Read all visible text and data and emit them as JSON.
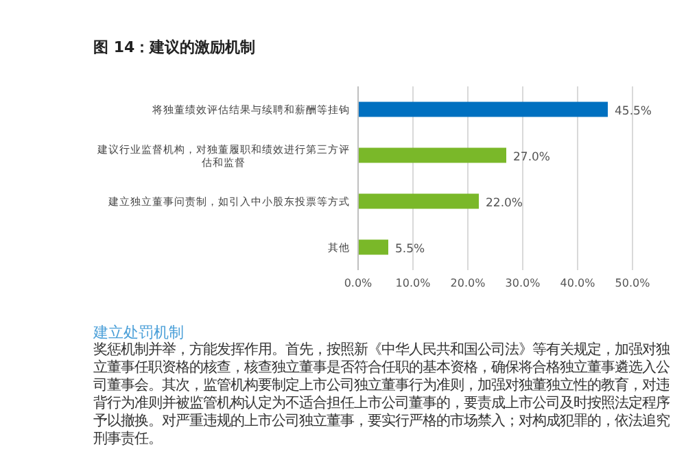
{
  "chart_data": {
    "type": "bar",
    "orientation": "horizontal",
    "title": "图 14：建议的激励机制",
    "categories": [
      "将独董绩效评估结果与续聘和薪酬等挂钩",
      "建议行业监督机构，对独董履职和绩效进行第三方评估和监督",
      "建立独立董事问责制，如引入中小股东投票等方式",
      "其他"
    ],
    "values": [
      45.5,
      27.0,
      22.0,
      5.5
    ],
    "colors": [
      "#0070c0",
      "#7ab829",
      "#7ab829",
      "#7ab829"
    ],
    "value_labels": [
      "45.5%",
      "27.0%",
      "22.0%",
      "5.5%"
    ],
    "xlim": [
      0,
      50
    ],
    "xticks": [
      {
        "value": 0,
        "label": "0.0%"
      },
      {
        "value": 10,
        "label": "10.0%"
      },
      {
        "value": 20,
        "label": "20.0%"
      },
      {
        "value": 30,
        "label": "30.0%"
      },
      {
        "value": 40,
        "label": "40.0%"
      },
      {
        "value": 50,
        "label": "50.0%"
      }
    ],
    "grid": "x",
    "annotations": [
      "建立处罚机制",
      "奖惩机制并举，方能发挥作用。首先，按照新《中华人民共和国公司法》等有关规定，加强对独立董事任职资格的核查，核查独立董事是否符合任职的基本资格，确保将合格独立董事遴选入公司董事会。其次，监管机构要制定上市公司独立董事行为准则，加强对独董独立性的教育，对违背行为准则并被监管机构认定为不适合担任上市公司董事的，要责成上市公司及时按照法定程序予以撤换。对严重违规的上市公司独立董事，要实行严格的市场禁入；对构成犯罪的，依法追究刑事责任。"
    ]
  }
}
